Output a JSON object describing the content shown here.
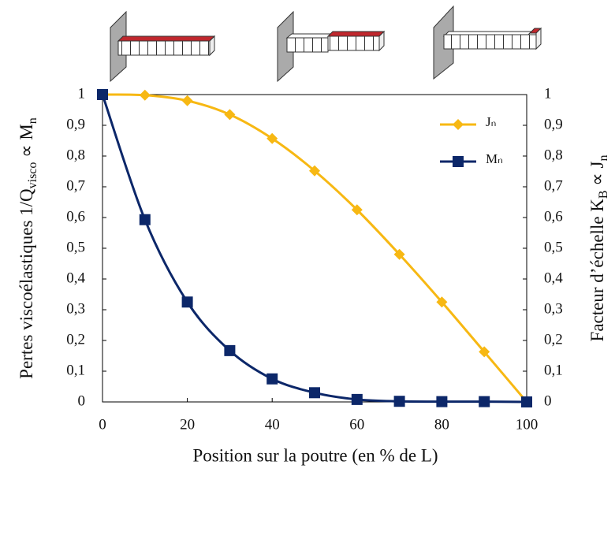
{
  "chart_data": {
    "type": "line",
    "x": [
      0,
      10,
      20,
      30,
      40,
      50,
      60,
      70,
      80,
      90,
      100
    ],
    "series": [
      {
        "name": "Jₙ",
        "color": "#f7b813",
        "marker": "diamond",
        "axis": "y2",
        "values": [
          1,
          0.998,
          0.98,
          0.935,
          0.857,
          0.752,
          0.625,
          0.48,
          0.325,
          0.163,
          0
        ]
      },
      {
        "name": "Mₙ",
        "color": "#0c2769",
        "marker": "square",
        "values": [
          1,
          0.593,
          0.325,
          0.167,
          0.075,
          0.03,
          0.008,
          0.002,
          0.001,
          0.001,
          0
        ]
      }
    ],
    "xlabel": "Position sur la poutre (en % de L)",
    "ylabel": [
      "Pertes viscoélastiques 1/Q",
      "visco",
      " ∝ M",
      "n"
    ],
    "y2label": [
      "Facteur d’échelle K",
      "B",
      " ∝ J",
      "n"
    ],
    "xlim": [
      0,
      100
    ],
    "xticks": [
      0,
      20,
      40,
      60,
      80,
      100
    ],
    "ylim": [
      0,
      1
    ],
    "yticks": [
      0,
      {
        "value": 0.1,
        "label": "0,1"
      },
      {
        "value": 0.2,
        "label": "0,2"
      },
      {
        "value": 0.3,
        "label": "0,3"
      },
      {
        "value": 0.4,
        "label": "0,4"
      },
      {
        "value": 0.5,
        "label": "0,5"
      },
      {
        "value": 0.6,
        "label": "0,6"
      },
      {
        "value": 0.7,
        "label": "0,7"
      },
      {
        "value": 0.8,
        "label": "0,8"
      },
      {
        "value": 0.9,
        "label": "0,9"
      },
      1
    ],
    "y2lim": [
      0,
      1
    ],
    "y2ticks": [
      0,
      {
        "value": 0.1,
        "label": "0,1"
      },
      {
        "value": 0.2,
        "label": "0,2"
      },
      {
        "value": 0.3,
        "label": "0,3"
      },
      {
        "value": 0.4,
        "label": "0,4"
      },
      {
        "value": 0.5,
        "label": "0,5"
      },
      {
        "value": 0.6,
        "label": "0,6"
      },
      {
        "value": 0.7,
        "label": "0,7"
      },
      {
        "value": 0.8,
        "label": "0,8"
      },
      {
        "value": 0.9,
        "label": "0,9"
      },
      1
    ],
    "legend": "top-right",
    "smooth": true
  }
}
